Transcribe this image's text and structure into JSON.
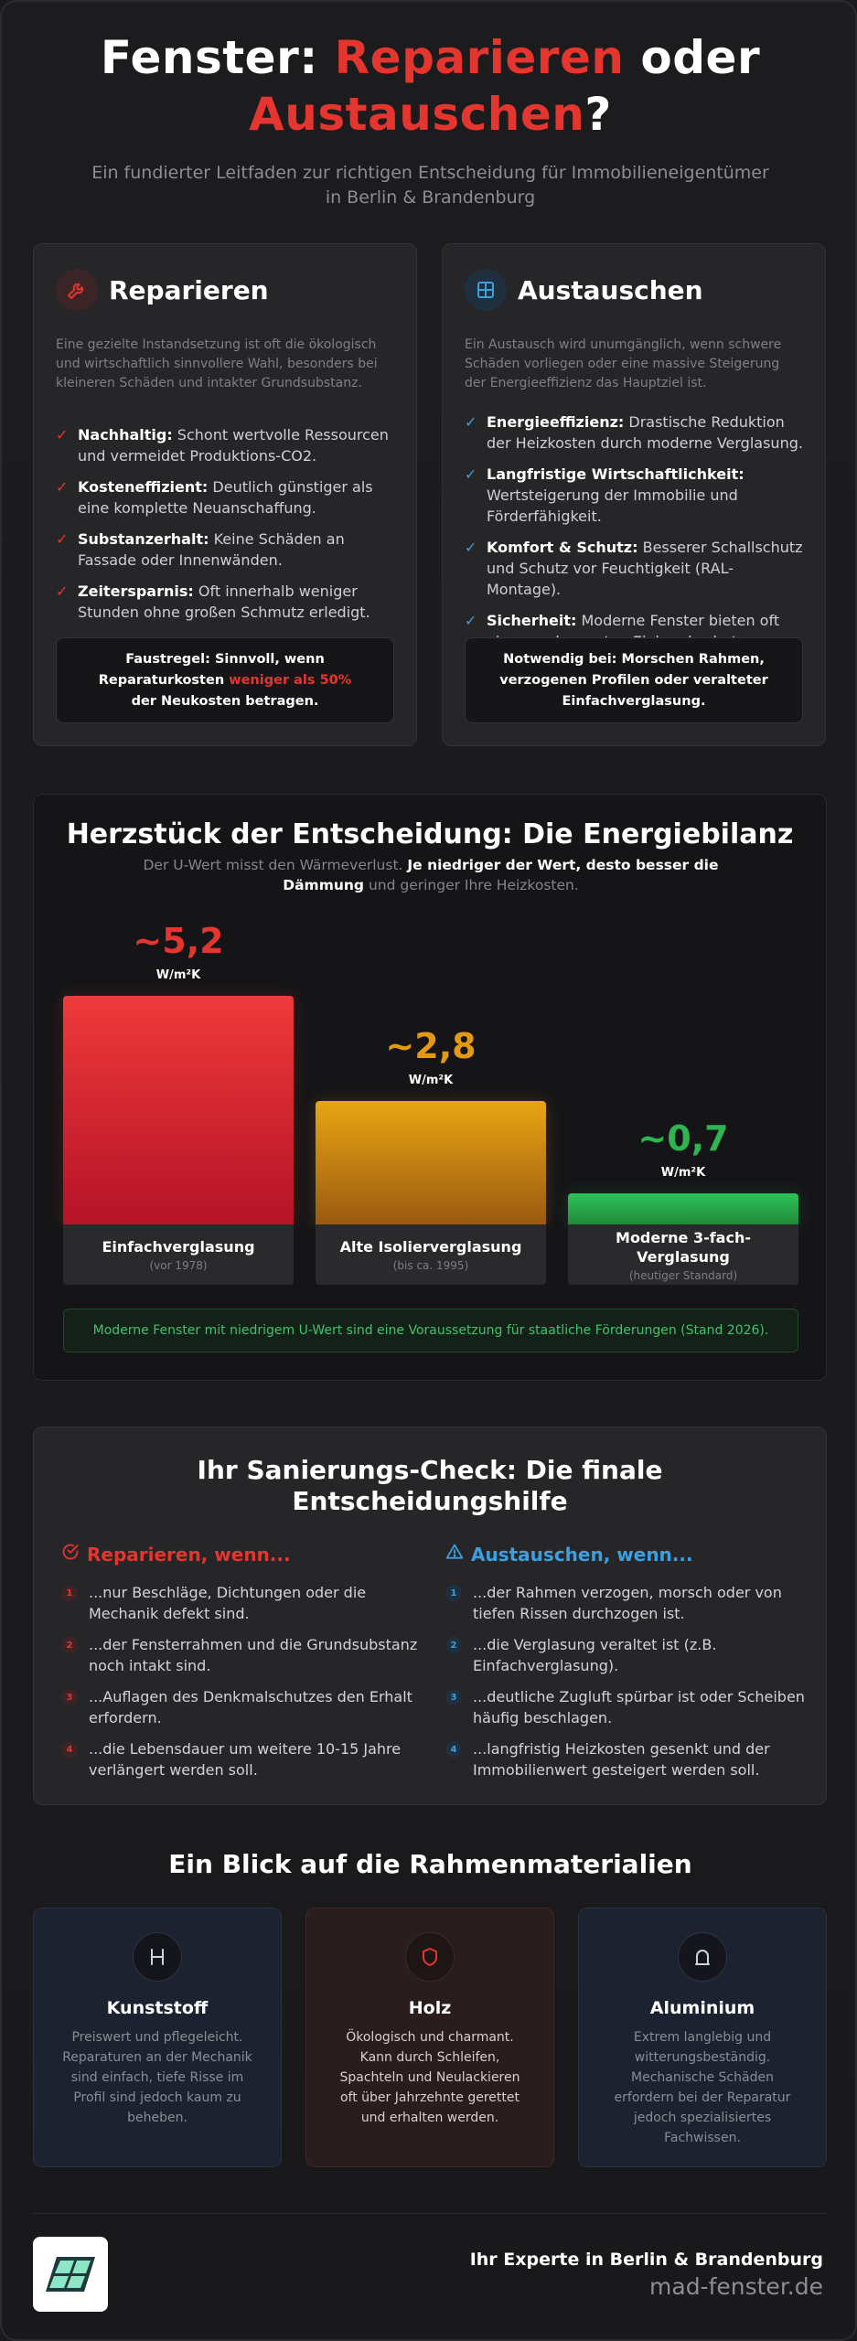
{
  "header": {
    "title_part1": "Fenster: ",
    "title_red1": "Reparieren",
    "title_part2": " oder",
    "title_red2": "Austauschen",
    "title_part3": "?",
    "subtitle": "Ein fundierter Leitfaden zur richtigen Entscheidung für Immobilieneigentümer in Berlin & Brandenburg"
  },
  "colors": {
    "accent_red": "#e5352f",
    "accent_blue": "#3b9fe0",
    "accent_orange": "#e39a12",
    "accent_green": "#2fb452"
  },
  "repair": {
    "icon": "wrench-icon",
    "title": "Reparieren",
    "intro": "Eine gezielte Instandsetzung ist oft die ökologisch und wirtschaftlich sinnvollere Wahl, besonders bei kleineren Schäden und intakter Grundsubstanz.",
    "items": [
      {
        "bold": "Nachhaltig:",
        "text": " Schont wertvolle Ressourcen und vermeidet Produktions-CO2."
      },
      {
        "bold": "Kosteneffizient:",
        "text": " Deutlich günstiger als eine komplette Neuanschaffung."
      },
      {
        "bold": "Substanzerhalt:",
        "text": " Keine Schäden an Fassade oder Innenwänden."
      },
      {
        "bold": "Zeitersparnis:",
        "text": " Oft innerhalb weniger Stunden ohne großen Schmutz erledigt."
      }
    ],
    "rule_a": "Faustregel: Sinnvoll, wenn Reparaturkosten ",
    "rule_red": "weniger als 50%",
    "rule_b": " der Neukosten betragen."
  },
  "replace": {
    "icon": "window-icon",
    "title": "Austauschen",
    "intro": "Ein Austausch wird unumgänglich, wenn schwere Schäden vorliegen oder eine massive Steigerung der Energieeffizienz das Hauptziel ist.",
    "items": [
      {
        "bold": "Energieeffizienz:",
        "text": " Drastische Reduktion der Heizkosten durch moderne Verglasung."
      },
      {
        "bold": "Langfristige Wirtschaftlichkeit:",
        "text": " Wertsteigerung der Immobilie und Förderfähigkeit."
      },
      {
        "bold": "Komfort & Schutz:",
        "text": " Besserer Schallschutz und Schutz vor Feuchtigkeit (RAL-Montage)."
      },
      {
        "bold": "Sicherheit:",
        "text": " Moderne Fenster bieten oft einen verbesserten Einbruchschutz."
      }
    ],
    "rule": "Notwendig bei: Morschen Rahmen, verzogenen Profilen oder veralteter Einfachverglasung."
  },
  "energy": {
    "title": "Herzstück der Entscheidung: Die Energiebilanz",
    "sub_a": "Der U-Wert misst den Wärmeverlust. ",
    "sub_b": "Je niedriger der Wert, desto besser die Dämmung",
    "sub_c": " und geringer Ihre Heizkosten.",
    "unit": "W/m²K",
    "note": "Moderne Fenster mit niedrigem U-Wert sind eine Voraussetzung für staatliche Förderungen (Stand 2026)."
  },
  "chart_data": {
    "type": "bar",
    "categories": [
      "Einfachverglasung",
      "Alte Isolierverglasung",
      "Moderne 3-fach-Verglasung"
    ],
    "category_notes": [
      "(vor 1978)",
      "(bis ca. 1995)",
      "(heutiger Standard)"
    ],
    "values": [
      5.2,
      2.8,
      0.7
    ],
    "value_labels": [
      "~5,2",
      "~2,8",
      "~0,7"
    ],
    "unit": "W/m²K",
    "colors": [
      "#e5352f",
      "#e39a12",
      "#2fb452"
    ]
  },
  "check": {
    "title": "Ihr Sanierungs-Check: Die finale Entscheidungshilfe",
    "repair_head": "Reparieren, wenn...",
    "replace_head": "Austauschen, wenn...",
    "repair_items": [
      "...nur Beschläge, Dichtungen oder die Mechanik defekt sind.",
      "...der Fensterrahmen und die Grundsubstanz noch intakt sind.",
      "...Auflagen des Denkmalschutzes den Erhalt erfordern.",
      "...die Lebensdauer um weitere 10-15 Jahre verlängert werden soll."
    ],
    "replace_items": [
      "...der Rahmen verzogen, morsch oder von tiefen Rissen durchzogen ist.",
      "...die Verglasung veraltet ist (z.B. Einfachverglasung).",
      "...deutliche Zugluft spürbar ist oder Scheiben häufig beschlagen.",
      "...langfristig Heizkosten gesenkt und der Immobilienwert gesteigert werden soll."
    ]
  },
  "materials": {
    "title": "Ein Blick auf die Rahmenmaterialien",
    "items": [
      {
        "name": "Kunststoff",
        "icon": "profile-icon",
        "text": "Preiswert und pflegeleicht. Reparaturen an der Mechanik sind einfach, tiefe Risse im Profil sind jedoch kaum zu beheben."
      },
      {
        "name": "Holz",
        "icon": "shield-icon",
        "text": "Ökologisch und charmant. Kann durch Schleifen, Spachteln und Neulackieren oft über Jahrzehnte gerettet und erhalten werden."
      },
      {
        "name": "Aluminium",
        "icon": "arch-icon",
        "text": "Extrem langlebig und witterungsbeständig. Mechanische Schäden erfordern bei der Reparatur jedoch spezialisiertes Fachwissen."
      }
    ]
  },
  "footer": {
    "tagline": "Ihr Experte in Berlin & Brandenburg",
    "domain": "mad-fenster.de",
    "logo_icon": "window-logo-icon"
  }
}
